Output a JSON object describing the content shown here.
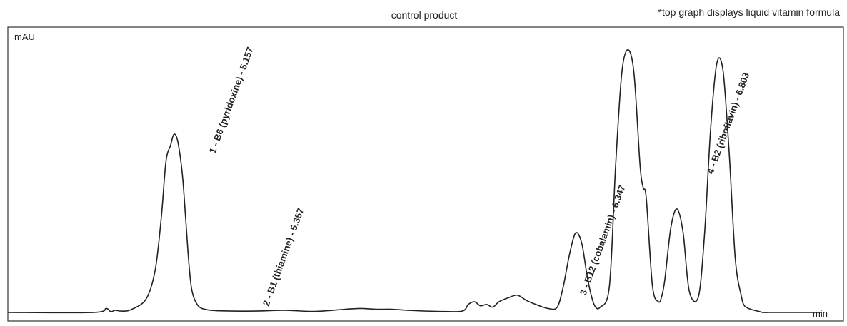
{
  "chart_data": {
    "type": "line",
    "title": "control product",
    "note": "*top graph displays liquid vitamin formula",
    "ylabel": "mAU",
    "xlabel": "min",
    "xlim": [
      4.6,
      7.25
    ],
    "ylim": [
      0,
      1.0
    ],
    "grid": false,
    "legend": "none",
    "series": [
      {
        "color": "#222222",
        "x": [
          4.6,
          4.88,
          4.92,
          4.935,
          4.95,
          4.97,
          5.0,
          5.05,
          5.08,
          5.1,
          5.115,
          5.13,
          5.14,
          5.15,
          5.16,
          5.17,
          5.18,
          5.19,
          5.2,
          5.22,
          5.25,
          5.3,
          5.4,
          5.5,
          5.6,
          5.7,
          5.75,
          5.8,
          5.85,
          5.9,
          6.0,
          6.08,
          6.1,
          6.12,
          6.14,
          6.16,
          6.18,
          6.2,
          6.23,
          6.26,
          6.29,
          6.32,
          6.36,
          6.39,
          6.41,
          6.43,
          6.45,
          6.47,
          6.49,
          6.51,
          6.53,
          6.56,
          6.58,
          6.6,
          6.62,
          6.64,
          6.66,
          6.67,
          6.68,
          6.7,
          6.72,
          6.73,
          6.74,
          6.76,
          6.78,
          6.8,
          6.82,
          6.85,
          6.87,
          6.89,
          6.91,
          6.93,
          6.95,
          6.97,
          6.99,
          7.0,
          7.02,
          7.04,
          7.05,
          7.06,
          7.08,
          7.1,
          7.12,
          7.25
        ],
        "values": [
          0.0,
          0.0,
          0.015,
          0.003,
          0.008,
          0.005,
          0.01,
          0.05,
          0.16,
          0.36,
          0.57,
          0.63,
          0.67,
          0.66,
          0.6,
          0.5,
          0.34,
          0.18,
          0.08,
          0.025,
          0.01,
          0.006,
          0.005,
          0.008,
          0.004,
          0.012,
          0.015,
          0.012,
          0.012,
          0.008,
          0.004,
          0.005,
          0.03,
          0.04,
          0.025,
          0.03,
          0.02,
          0.04,
          0.055,
          0.065,
          0.045,
          0.03,
          0.015,
          0.02,
          0.1,
          0.22,
          0.3,
          0.26,
          0.12,
          0.03,
          0.02,
          0.1,
          0.55,
          0.9,
          0.99,
          0.9,
          0.55,
          0.47,
          0.43,
          0.1,
          0.04,
          0.06,
          0.12,
          0.32,
          0.39,
          0.3,
          0.08,
          0.06,
          0.3,
          0.7,
          0.94,
          0.91,
          0.6,
          0.2,
          0.06,
          0.025,
          0.012,
          0.006,
          0.003,
          0.0,
          0.0,
          0.0,
          0.0,
          0.0
        ]
      }
    ],
    "annotations": [
      {
        "text": "1 - B6 (pyridoxine) - 5.157"
      },
      {
        "text": "2 - B1 (thiamine) - 5.357"
      },
      {
        "text": "3 - B12 (cobalamin) - 6.347"
      },
      {
        "text": "4 - B2 (riboflavin) - 6.803"
      }
    ]
  }
}
